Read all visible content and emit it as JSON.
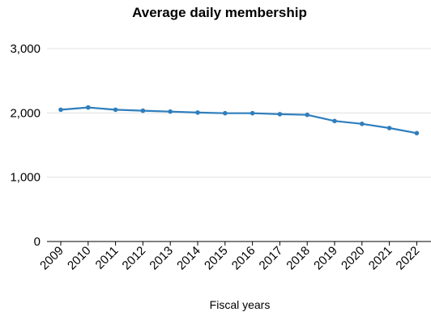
{
  "chart_data": {
    "type": "line",
    "title": "Average daily membership",
    "xlabel": "Fiscal years",
    "ylabel": "",
    "categories": [
      "2009",
      "2010",
      "2011",
      "2012",
      "2013",
      "2014",
      "2015",
      "2016",
      "2017",
      "2018",
      "2019",
      "2020",
      "2021",
      "2022"
    ],
    "series": [
      {
        "values": [
          2050,
          2085,
          2050,
          2035,
          2020,
          2005,
          1995,
          1995,
          1980,
          1970,
          1875,
          1830,
          1765,
          1685
        ],
        "color": "#2f7ebc"
      }
    ],
    "yticks": [
      0,
      1000,
      2000,
      3000
    ],
    "ytick_labels": [
      "0",
      "1,000",
      "2,000",
      "3,000"
    ],
    "ylim": [
      0,
      3000
    ],
    "grid": true,
    "legend": "none"
  }
}
